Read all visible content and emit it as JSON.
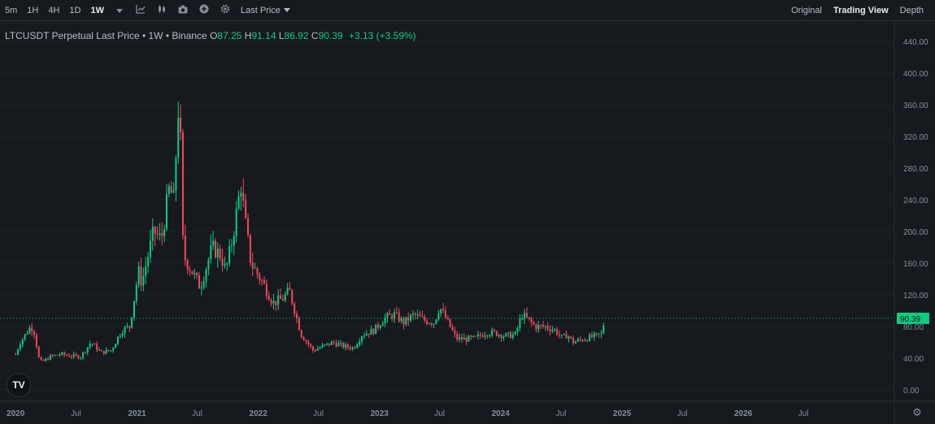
{
  "toolbar": {
    "timeframes": [
      "5m",
      "1H",
      "4H",
      "1D",
      "1W"
    ],
    "active_timeframe": "1W",
    "price_type": "Last Price",
    "views": [
      "Original",
      "Trading View",
      "Depth"
    ],
    "active_view": "Trading View",
    "tools": [
      "chevron-down-icon",
      "indicator-icon",
      "candle-type-icon",
      "camera-icon",
      "plus-circle-icon",
      "gear-icon"
    ]
  },
  "legend": {
    "title": "LTCUSDT Perpetual Last Price • 1W • Binance",
    "o_label": "O",
    "o_value": "87.25",
    "h_label": "H",
    "h_value": "91.14",
    "l_label": "L",
    "l_value": "86.92",
    "c_label": "C",
    "c_value": "90.39",
    "change": "+3.13 (+3.59%)"
  },
  "chart_data": {
    "type": "candlestick",
    "symbol": "LTCUSDT",
    "interval": "1W",
    "y_ticks": [
      "0.00",
      "40.00",
      "80.00",
      "120.00",
      "160.00",
      "200.00",
      "240.00",
      "280.00",
      "320.00",
      "360.00",
      "400.00",
      "440.00"
    ],
    "ylim": [
      0,
      450
    ],
    "x_ticks": [
      "2020",
      "Jul",
      "2021",
      "Jul",
      "2022",
      "Jul",
      "2023",
      "Jul",
      "2024",
      "Jul",
      "2025",
      "Jul",
      "2026",
      "Jul"
    ],
    "xlim": [
      "2019-11-15",
      "2027-04-01"
    ],
    "last_price": 90.39,
    "last_price_label": "90.39",
    "colors": {
      "up": "#0ecb81",
      "down": "#f6465d",
      "grid": "#1f2329",
      "axis_text": "#848e9c",
      "last_line": "#0ecb81"
    },
    "series": [
      {
        "date": "2020-01-01",
        "close": 45
      },
      {
        "date": "2020-01-15",
        "close": 60
      },
      {
        "date": "2020-02-15",
        "close": 80
      },
      {
        "date": "2020-02-25",
        "close": 75
      },
      {
        "date": "2020-03-12",
        "close": 38
      },
      {
        "date": "2020-03-20",
        "close": 35
      },
      {
        "date": "2020-04-15",
        "close": 42
      },
      {
        "date": "2020-05-15",
        "close": 45
      },
      {
        "date": "2020-06-15",
        "close": 43
      },
      {
        "date": "2020-07-15",
        "close": 42
      },
      {
        "date": "2020-08-15",
        "close": 60
      },
      {
        "date": "2020-09-15",
        "close": 47
      },
      {
        "date": "2020-10-15",
        "close": 50
      },
      {
        "date": "2020-11-15",
        "close": 75
      },
      {
        "date": "2020-12-10",
        "close": 80
      },
      {
        "date": "2021-01-05",
        "close": 150
      },
      {
        "date": "2021-01-15",
        "close": 135
      },
      {
        "date": "2021-02-20",
        "close": 200
      },
      {
        "date": "2021-03-15",
        "close": 190
      },
      {
        "date": "2021-04-10",
        "close": 260
      },
      {
        "date": "2021-04-20",
        "close": 230
      },
      {
        "date": "2021-05-08",
        "close": 380
      },
      {
        "date": "2021-05-20",
        "close": 170
      },
      {
        "date": "2021-06-15",
        "close": 150
      },
      {
        "date": "2021-07-10",
        "close": 130
      },
      {
        "date": "2021-08-15",
        "close": 180
      },
      {
        "date": "2021-09-10",
        "close": 170
      },
      {
        "date": "2021-09-25",
        "close": 150
      },
      {
        "date": "2021-10-15",
        "close": 190
      },
      {
        "date": "2021-11-10",
        "close": 260
      },
      {
        "date": "2021-11-20",
        "close": 220
      },
      {
        "date": "2021-12-10",
        "close": 160
      },
      {
        "date": "2022-01-15",
        "close": 135
      },
      {
        "date": "2022-02-15",
        "close": 110
      },
      {
        "date": "2022-03-15",
        "close": 115
      },
      {
        "date": "2022-04-05",
        "close": 125
      },
      {
        "date": "2022-05-10",
        "close": 70
      },
      {
        "date": "2022-06-15",
        "close": 50
      },
      {
        "date": "2022-07-15",
        "close": 55
      },
      {
        "date": "2022-08-15",
        "close": 60
      },
      {
        "date": "2022-09-15",
        "close": 55
      },
      {
        "date": "2022-10-15",
        "close": 53
      },
      {
        "date": "2022-11-10",
        "close": 70
      },
      {
        "date": "2022-12-15",
        "close": 75
      },
      {
        "date": "2023-01-15",
        "close": 90
      },
      {
        "date": "2023-02-15",
        "close": 95
      },
      {
        "date": "2023-03-15",
        "close": 85
      },
      {
        "date": "2023-04-15",
        "close": 95
      },
      {
        "date": "2023-05-15",
        "close": 88
      },
      {
        "date": "2023-06-15",
        "close": 85
      },
      {
        "date": "2023-07-01",
        "close": 105
      },
      {
        "date": "2023-07-20",
        "close": 90
      },
      {
        "date": "2023-08-20",
        "close": 65
      },
      {
        "date": "2023-09-15",
        "close": 64
      },
      {
        "date": "2023-10-15",
        "close": 65
      },
      {
        "date": "2023-11-15",
        "close": 72
      },
      {
        "date": "2023-12-15",
        "close": 72
      },
      {
        "date": "2024-01-15",
        "close": 68
      },
      {
        "date": "2024-02-15",
        "close": 70
      },
      {
        "date": "2024-03-05",
        "close": 95
      },
      {
        "date": "2024-03-20",
        "close": 90
      },
      {
        "date": "2024-04-15",
        "close": 80
      },
      {
        "date": "2024-05-15",
        "close": 80
      },
      {
        "date": "2024-06-15",
        "close": 75
      },
      {
        "date": "2024-07-05",
        "close": 65
      },
      {
        "date": "2024-07-20",
        "close": 70
      },
      {
        "date": "2024-08-05",
        "close": 60
      },
      {
        "date": "2024-08-20",
        "close": 62
      },
      {
        "date": "2024-09-15",
        "close": 65
      },
      {
        "date": "2024-10-15",
        "close": 68
      },
      {
        "date": "2024-10-30",
        "close": 70
      },
      {
        "date": "2024-11-10",
        "close": 90.39
      }
    ]
  }
}
